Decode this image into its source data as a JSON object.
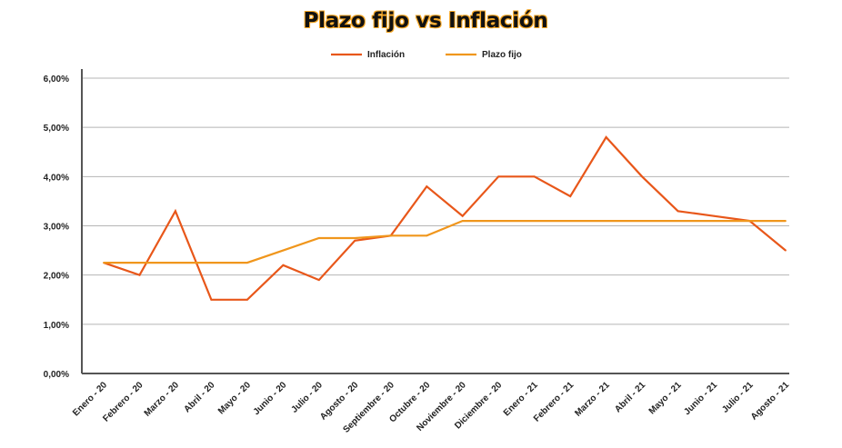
{
  "chart_data": {
    "type": "line",
    "title": "Plazo fijo vs Inflación",
    "xlabel": "",
    "ylabel": "",
    "categories": [
      "Enero - 20",
      "Febrero - 20",
      "Marzo - 20",
      "Abril - 20",
      "Mayo - 20",
      "Junio - 20",
      "Julio - 20",
      "Agosto - 20",
      "Septiembre - 20",
      "Octubre - 20",
      "Noviembre - 20",
      "Diciembre - 20",
      "Enero - 21",
      "Febrero - 21",
      "Marzo - 21",
      "Abril - 21",
      "Mayo - 21",
      "Junio - 21",
      "Julio - 21",
      "Agosto - 21"
    ],
    "ylim": [
      0,
      6
    ],
    "yticks": [
      0,
      1,
      2,
      3,
      4,
      5,
      6
    ],
    "ytick_labels": [
      "0,00%",
      "1,00%",
      "2,00%",
      "3,00%",
      "4,00%",
      "5,00%",
      "6,00%"
    ],
    "grid": true,
    "legend_position": "top",
    "series": [
      {
        "name": "Inflación",
        "color": "#e8571a",
        "values": [
          2.25,
          2.0,
          3.3,
          1.5,
          1.5,
          2.2,
          1.9,
          2.7,
          2.8,
          3.8,
          3.2,
          4.0,
          4.0,
          3.6,
          4.8,
          4.0,
          3.3,
          3.2,
          3.1,
          2.5
        ]
      },
      {
        "name": "Plazo fijo",
        "color": "#f0961c",
        "values": [
          2.25,
          2.25,
          2.25,
          2.25,
          2.25,
          2.5,
          2.75,
          2.75,
          2.8,
          2.8,
          3.1,
          3.1,
          3.1,
          3.1,
          3.1,
          3.1,
          3.1,
          3.1,
          3.1,
          3.1
        ]
      }
    ]
  }
}
